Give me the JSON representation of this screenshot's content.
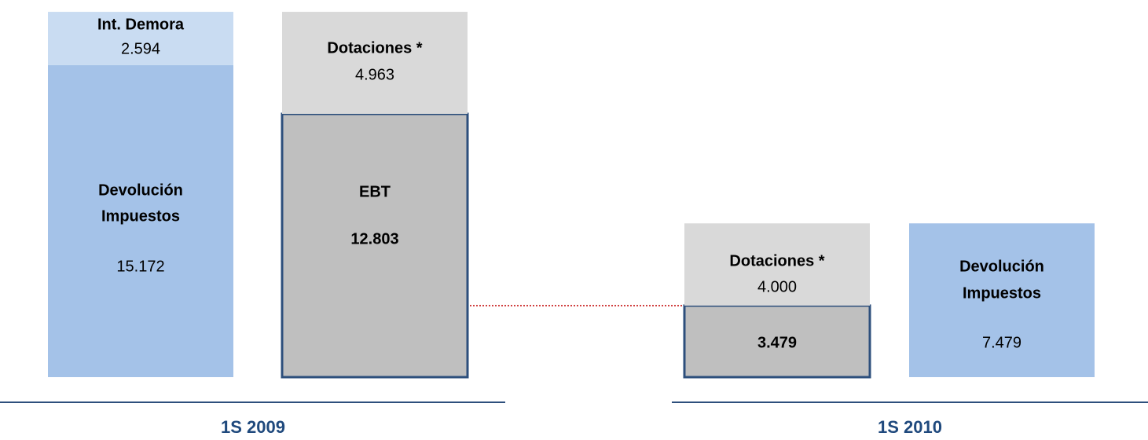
{
  "chart_data": {
    "type": "stacked-blocks",
    "groups": [
      {
        "name": "1S 2009",
        "bars": [
          {
            "segments": [
              {
                "label_lines": [
                  "Devolución",
                  "Impuestos"
                ],
                "value": 15172,
                "value_label": "15.172",
                "color": "#a4c2e8"
              },
              {
                "label_lines": [
                  "Int. Demora"
                ],
                "value": 2594,
                "value_label": "2.594",
                "color": "#c9dcf2"
              }
            ]
          },
          {
            "segments": [
              {
                "label_lines": [
                  "EBT"
                ],
                "value": 12803,
                "value_label": "12.803",
                "color": "#bfbfbf",
                "bold": true,
                "outline": "#2d4f7c"
              },
              {
                "label_lines": [
                  "Dotaciones *"
                ],
                "value": 4963,
                "value_label": "4.963",
                "color": "#d9d9d9"
              }
            ]
          }
        ]
      },
      {
        "name": "1S 2010",
        "bars": [
          {
            "segments": [
              {
                "value": 3479,
                "value_label": "3.479",
                "color": "#bfbfbf",
                "bold": true,
                "outline": "#2d4f7c"
              },
              {
                "label_lines": [
                  "Dotaciones *"
                ],
                "value": 4000,
                "value_label": "4.000",
                "color": "#d9d9d9"
              }
            ]
          },
          {
            "segments": [
              {
                "label_lines": [
                  "Devolución",
                  "Impuestos"
                ],
                "value": 7479,
                "value_label": "7.479",
                "color": "#a4c2e8"
              }
            ]
          }
        ]
      }
    ]
  }
}
